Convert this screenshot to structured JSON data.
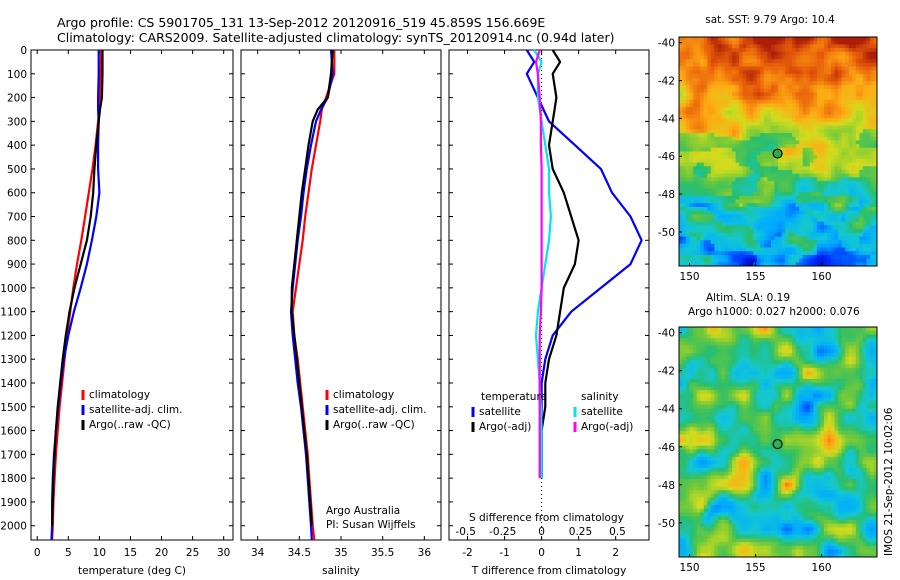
{
  "header": {
    "line1": "Argo profile: CS 5901705_131 13-Sep-2012 20120916_519 45.859S 156.669E",
    "line2": "Climatology: CARS2009. Satellite-adjusted climatology: synTS_20120914.nc (0.94d later)"
  },
  "colors": {
    "climatology": "#ff0000",
    "satellite": "#0000ff",
    "argo": "#000000",
    "sat_salinity": "#00e5ee",
    "argo_salinity": "#ff00ff"
  },
  "chart_data": [
    {
      "type": "line",
      "name": "temperature-profile",
      "xlabel": "temperature (deg C)",
      "ylabel": "",
      "xlim": [
        -1,
        31.5
      ],
      "ylim": [
        2060,
        0
      ],
      "xticks": [
        "0",
        "5",
        "10",
        "15",
        "20",
        "25",
        "30"
      ],
      "yticks": [
        "0",
        "100",
        "200",
        "300",
        "400",
        "500",
        "600",
        "700",
        "800",
        "900",
        "1000",
        "1100",
        "1200",
        "1300",
        "1400",
        "1500",
        "1600",
        "1700",
        "1800",
        "1900",
        "2000"
      ],
      "legend": [
        "climatology",
        "satellite-adj. clim.",
        "Argo(..raw -QC)"
      ],
      "legend_position": "bottom-right",
      "series": [
        {
          "name": "climatology",
          "color": "#ff0000",
          "x": [
            10.3,
            10.2,
            10.1,
            10.0,
            9.8,
            9.4,
            8.9,
            8.3,
            7.7,
            7.1,
            6.4,
            5.8,
            5.3,
            4.8,
            4.4,
            4.0,
            3.6,
            3.3,
            3.0,
            2.8,
            2.6,
            2.5,
            2.4
          ],
          "y": [
            0,
            100,
            200,
            250,
            300,
            400,
            500,
            600,
            700,
            800,
            900,
            1000,
            1100,
            1200,
            1300,
            1400,
            1500,
            1600,
            1700,
            1800,
            1900,
            2000,
            2060
          ]
        },
        {
          "name": "satellite-adj. clim.",
          "color": "#0000ff",
          "x": [
            9.9,
            9.9,
            9.8,
            9.8,
            9.9,
            9.8,
            9.8,
            10.0,
            9.5,
            8.8,
            8.0,
            7.0,
            5.9,
            5.0,
            4.3,
            3.8,
            3.4,
            3.0,
            2.7,
            2.5,
            2.4,
            2.4,
            2.3
          ],
          "y": [
            0,
            100,
            200,
            250,
            300,
            400,
            500,
            600,
            700,
            800,
            900,
            1000,
            1100,
            1200,
            1300,
            1400,
            1500,
            1600,
            1700,
            1800,
            1900,
            2000,
            2060
          ]
        },
        {
          "name": "Argo(..raw -QC)",
          "color": "#000000",
          "x": [
            10.5,
            10.5,
            10.4,
            10.1,
            9.9,
            9.5,
            9.2,
            9.0,
            8.6,
            8.0,
            7.0,
            6.0,
            5.2,
            4.6,
            4.1,
            3.7,
            3.3,
            3.0,
            2.8,
            2.6,
            2.5,
            2.4
          ],
          "y": [
            0,
            100,
            200,
            250,
            300,
            400,
            500,
            600,
            700,
            800,
            900,
            1000,
            1100,
            1200,
            1300,
            1400,
            1500,
            1600,
            1700,
            1800,
            1900,
            2000
          ]
        }
      ]
    },
    {
      "type": "line",
      "name": "salinity-profile",
      "xlabel": "salinity",
      "ylabel": "",
      "xlim": [
        33.8,
        36.2
      ],
      "ylim": [
        2060,
        0
      ],
      "xticks": [
        "34",
        "34.5",
        "35",
        "35.5",
        "36"
      ],
      "legend": [
        "climatology",
        "satellite-adj. clim.",
        "Argo(..raw -QC)"
      ],
      "legend_position": "bottom-right",
      "annotation": [
        "Argo Australia",
        "PI: Susan Wijffels"
      ],
      "series": [
        {
          "name": "climatology",
          "color": "#ff0000",
          "x": [
            34.92,
            34.92,
            34.82,
            34.77,
            34.75,
            34.7,
            34.65,
            34.61,
            34.57,
            34.54,
            34.5,
            34.46,
            34.42,
            34.44,
            34.48,
            34.51,
            34.54,
            34.57,
            34.6,
            34.62,
            34.64,
            34.66,
            34.68
          ],
          "y": [
            0,
            100,
            200,
            250,
            300,
            400,
            500,
            600,
            700,
            800,
            900,
            1000,
            1100,
            1200,
            1300,
            1400,
            1500,
            1600,
            1700,
            1800,
            1900,
            2000,
            2060
          ]
        },
        {
          "name": "satellite-adj. clim.",
          "color": "#0000ff",
          "x": [
            34.88,
            34.9,
            34.84,
            34.76,
            34.7,
            34.64,
            34.59,
            34.55,
            34.52,
            34.48,
            34.45,
            34.42,
            34.4,
            34.42,
            34.45,
            34.48,
            34.52,
            34.55,
            34.58,
            34.6,
            34.62,
            34.64,
            34.65
          ],
          "y": [
            0,
            100,
            200,
            250,
            300,
            400,
            500,
            600,
            700,
            800,
            900,
            1000,
            1100,
            1200,
            1300,
            1400,
            1500,
            1600,
            1700,
            1800,
            1900,
            2000,
            2060
          ]
        },
        {
          "name": "Argo(..raw -QC)",
          "color": "#000000",
          "x": [
            34.9,
            34.88,
            34.84,
            34.72,
            34.66,
            34.61,
            34.57,
            34.53,
            34.5,
            34.47,
            34.44,
            34.41,
            34.41,
            34.44,
            34.47,
            34.5,
            34.53,
            34.56,
            34.59,
            34.61,
            34.63,
            34.65
          ],
          "y": [
            0,
            100,
            200,
            250,
            300,
            400,
            500,
            600,
            700,
            800,
            900,
            1000,
            1100,
            1200,
            1300,
            1400,
            1500,
            1600,
            1700,
            1800,
            1900,
            2000
          ]
        }
      ]
    },
    {
      "type": "line",
      "name": "difference-from-climatology",
      "xlabel": "T difference from climatology",
      "top_axis_label": "S difference from climatology",
      "xlim": [
        -2.5,
        2.9
      ],
      "ylim": [
        2060,
        0
      ],
      "xticks": [
        "-2",
        "-1",
        "0",
        "1",
        "2"
      ],
      "top_ticks": [
        "-0.5",
        "-0.25",
        "0",
        "0.25",
        "0.5"
      ],
      "legend_temperature": [
        "temperature",
        "satellite",
        "Argo(-adj)"
      ],
      "legend_salinity": [
        "salinity",
        "satellite",
        "Argo(-adj)"
      ],
      "legend_position": "bottom",
      "series": [
        {
          "name": "temperature satellite",
          "color": "#0000ff",
          "x": [
            -0.4,
            -0.2,
            -0.4,
            -0.1,
            0.2,
            0.9,
            1.6,
            1.9,
            2.4,
            2.7,
            2.4,
            1.6,
            0.8,
            0.3,
            0.1,
            0.0,
            0.0,
            0.0,
            0.0,
            0.0
          ],
          "y": [
            0,
            50,
            100,
            200,
            300,
            400,
            500,
            600,
            700,
            800,
            900,
            1000,
            1100,
            1200,
            1300,
            1400,
            1500,
            1600,
            1700,
            1800
          ]
        },
        {
          "name": "temperature Argo(-adj)",
          "color": "#000000",
          "x": [
            0.3,
            0.5,
            0.3,
            0.4,
            0.3,
            0.2,
            0.3,
            0.6,
            0.8,
            1.0,
            0.9,
            0.6,
            0.5,
            0.4,
            0.2,
            0.1,
            0.1,
            0.0,
            0.0,
            0.0
          ],
          "y": [
            0,
            50,
            100,
            200,
            300,
            400,
            500,
            600,
            700,
            800,
            900,
            1000,
            1100,
            1200,
            1300,
            1400,
            1500,
            1600,
            1700,
            1800
          ]
        },
        {
          "name": "salinity satellite",
          "color": "#00e5ee",
          "x": [
            -0.2,
            0.0,
            -0.1,
            -0.1,
            0.0,
            0.1,
            0.2,
            0.2,
            0.25,
            0.2,
            0.1,
            0.0,
            -0.1,
            -0.15,
            -0.1,
            -0.05,
            -0.02,
            0.0,
            0.0,
            0.0
          ],
          "y": [
            0,
            50,
            100,
            200,
            300,
            400,
            500,
            600,
            700,
            800,
            900,
            1000,
            1100,
            1200,
            1300,
            1400,
            1500,
            1600,
            1700,
            1800
          ]
        },
        {
          "name": "salinity Argo(-adj)",
          "color": "#ff00ff",
          "x": [
            -0.05,
            -0.15,
            -0.1,
            -0.05,
            -0.02,
            -0.02,
            0.0,
            0.0,
            0.0,
            0.0,
            0.0,
            0.0,
            -0.02,
            -0.05,
            -0.05,
            -0.05,
            -0.05,
            -0.05,
            -0.05,
            -0.05
          ],
          "y": [
            0,
            50,
            100,
            200,
            300,
            400,
            500,
            600,
            700,
            800,
            900,
            1000,
            1100,
            1200,
            1300,
            1400,
            1500,
            1600,
            1700,
            1800
          ]
        }
      ]
    },
    {
      "type": "heatmap",
      "name": "sat-sst-map",
      "title": "sat. SST: 9.79  Argo: 10.4",
      "xlim": [
        149.2,
        164.2
      ],
      "ylim": [
        -51.8,
        -39.7
      ],
      "xticks": [
        "150",
        "155",
        "160"
      ],
      "yticks": [
        "-40",
        "-42",
        "-44",
        "-46",
        "-48",
        "-50"
      ],
      "marker": {
        "lon": 156.669,
        "lat": -45.859
      }
    },
    {
      "type": "heatmap",
      "name": "altimetry-sla-map",
      "title": "Altim. SLA: 0.19",
      "subtitle": "Argo h1000: 0.027  h2000: 0.076",
      "xlim": [
        149.2,
        164.2
      ],
      "ylim": [
        -51.8,
        -39.7
      ],
      "xticks": [
        "150",
        "155",
        "160"
      ],
      "yticks": [
        "-40",
        "-42",
        "-44",
        "-46",
        "-48",
        "-50"
      ],
      "marker": {
        "lon": 156.669,
        "lat": -45.859
      }
    }
  ],
  "footer": {
    "credit": "IMOS 21-Sep-2012 10:02:06"
  }
}
